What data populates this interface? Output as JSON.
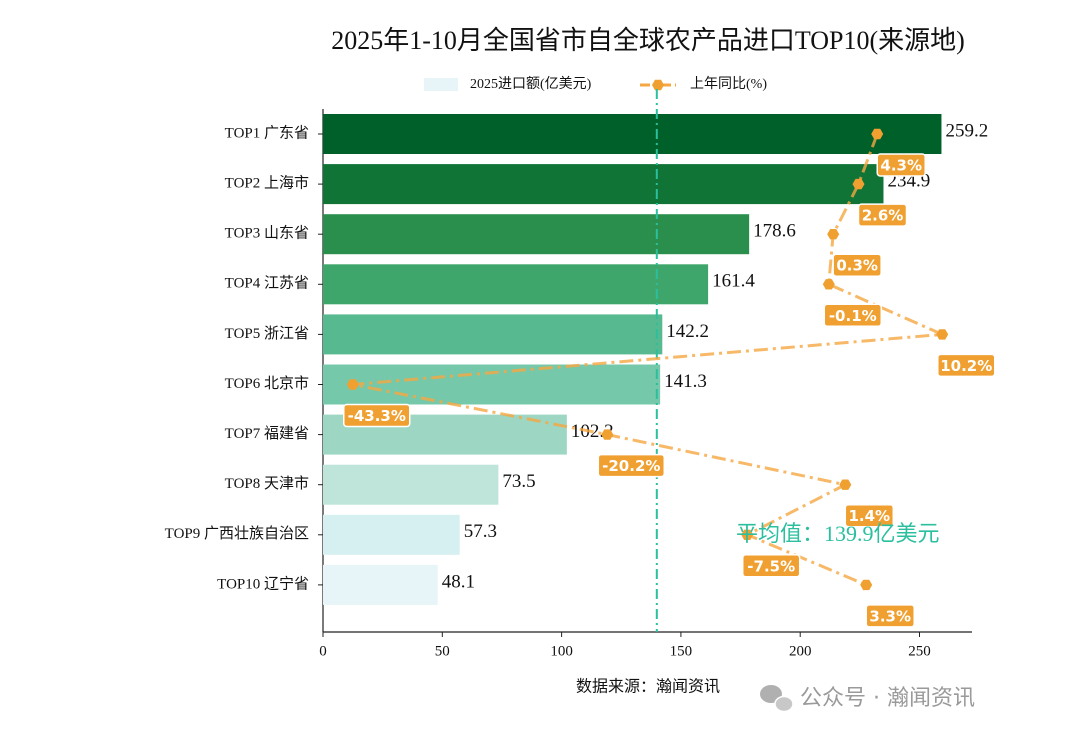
{
  "chart_data": {
    "type": "bar",
    "orientation": "horizontal",
    "title": "2025年1-10月全国省市自全球农产品进口TOP10(来源地)",
    "categories": [
      "TOP1 广东省",
      "TOP2 上海市",
      "TOP3 山东省",
      "TOP4 江苏省",
      "TOP5 浙江省",
      "TOP6 北京市",
      "TOP7 福建省",
      "TOP8 天津市",
      "TOP9 广西壮族自治区",
      "TOP10 辽宁省"
    ],
    "series": [
      {
        "name": "2025进口额(亿美元)",
        "type": "bar",
        "colors": [
          "#00602a",
          "#0f7436",
          "#2a8f4c",
          "#3ea66a",
          "#57b98f",
          "#76c8aa",
          "#9dd7c4",
          "#bfe5db",
          "#d6eff0",
          "#e7f5f8"
        ],
        "values": [
          259.2,
          234.9,
          178.6,
          161.4,
          142.2,
          141.3,
          102.2,
          73.5,
          57.3,
          48.1
        ]
      },
      {
        "name": "上年同比(%)",
        "type": "line",
        "axis": "x2",
        "color": "#f5a742",
        "values": [
          4.3,
          2.6,
          0.3,
          -0.1,
          10.2,
          -43.3,
          -20.2,
          1.4,
          -7.5,
          3.3
        ],
        "value_labels": [
          "4.3%",
          "2.6%",
          "0.3%",
          "-0.1%",
          "10.2%",
          "-43.3%",
          "-20.2%",
          "1.4%",
          "-7.5%",
          "3.3%"
        ]
      }
    ],
    "xlim": [
      0,
      272
    ],
    "xticks": [
      0,
      50,
      100,
      150,
      200,
      250
    ],
    "x2lim": [
      -46,
      12.9
    ],
    "mean": {
      "value": 139.9,
      "label": "平均值：139.9亿美元",
      "color": "#2bbf9f"
    },
    "source": "数据来源：瀚闻资讯",
    "watermark": "公众号 · 瀚闻资讯"
  }
}
